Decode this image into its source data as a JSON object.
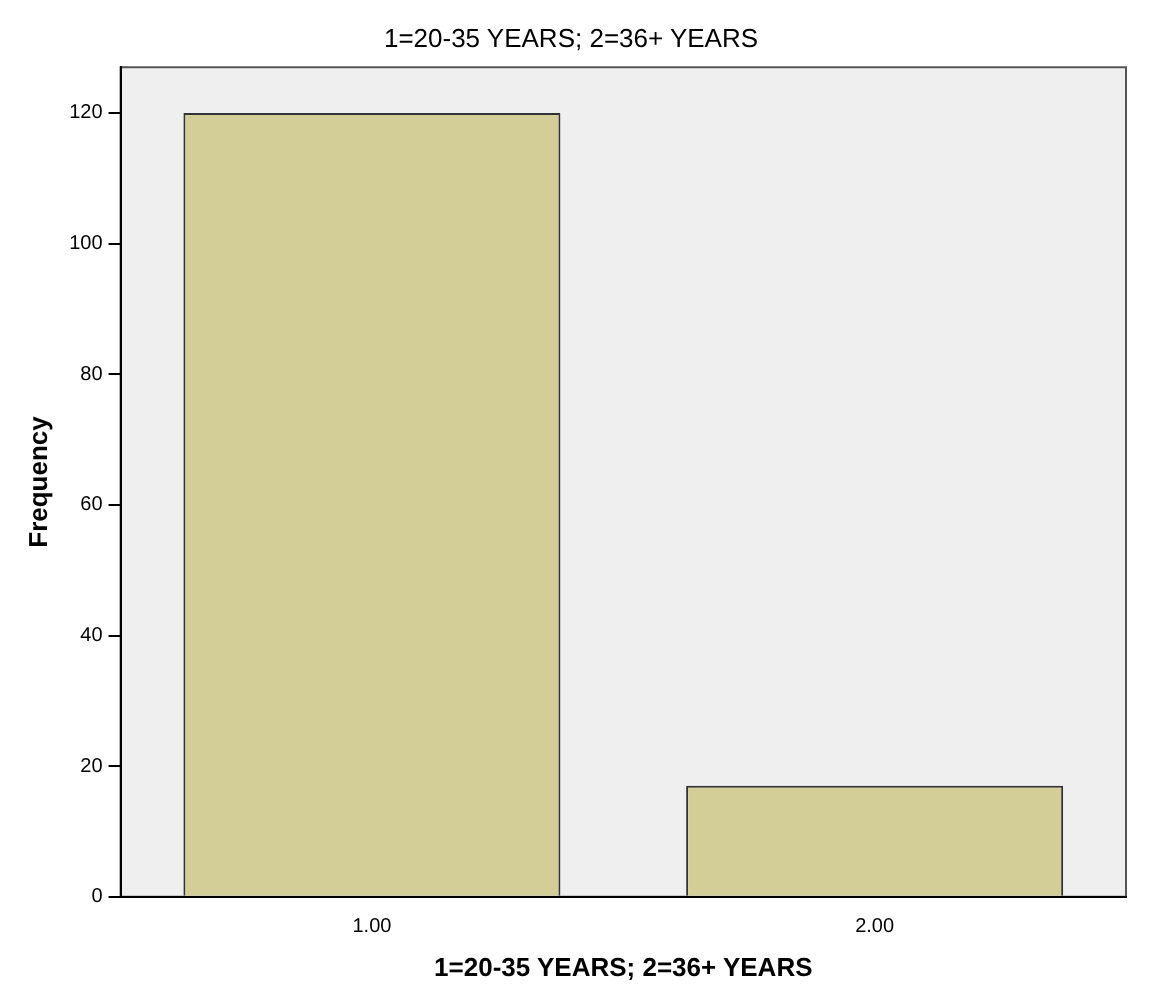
{
  "chart_data": {
    "type": "bar",
    "title": "1=20-35 YEARS; 2=36+ YEARS",
    "xlabel": "1=20-35 YEARS; 2=36+ YEARS",
    "ylabel": "Frequency",
    "categories": [
      "1.00",
      "2.00"
    ],
    "values": [
      120,
      17
    ],
    "color": "#d3ce97",
    "ylim": [
      0,
      127
    ],
    "yticks": [
      0,
      20,
      40,
      60,
      80,
      100,
      120
    ],
    "grid": false,
    "legend": false
  }
}
